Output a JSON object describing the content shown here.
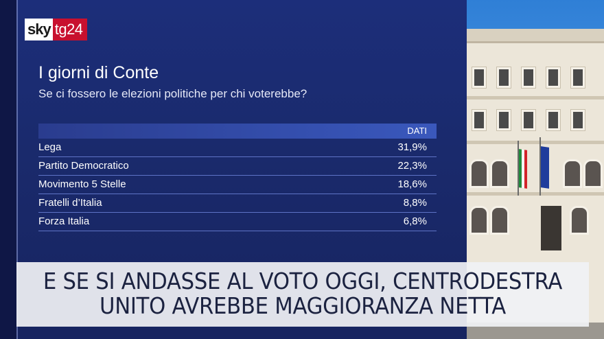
{
  "logo": {
    "sky": "sky",
    "tg24": "tg24"
  },
  "chart": {
    "title": "I giorni di Conte",
    "subtitle": "Se ci fossero le elezioni politiche per chi voterebbe?",
    "header_label": "DATI"
  },
  "chart_data": {
    "type": "table",
    "columns": [
      "",
      "DATI"
    ],
    "rows": [
      {
        "party": "Lega",
        "value": "31,9%"
      },
      {
        "party": "Partito Democratico",
        "value": "22,3%"
      },
      {
        "party": "Movimento 5 Stelle",
        "value": "18,6%"
      },
      {
        "party": "Fratelli d’Italia",
        "value": "8,8%"
      },
      {
        "party": "Forza Italia",
        "value": "6,8%"
      }
    ]
  },
  "caption": {
    "line1": "E SE SI ANDASSE AL VOTO OGGI, CENTRODESTRA",
    "line2": "UNITO AVREBBE MAGGIORANZA NETTA"
  },
  "colors": {
    "panel": "#1a2a6c",
    "header_bar": "#3550b0",
    "logo_red": "#c8102e",
    "caption_text": "#1b2240"
  }
}
